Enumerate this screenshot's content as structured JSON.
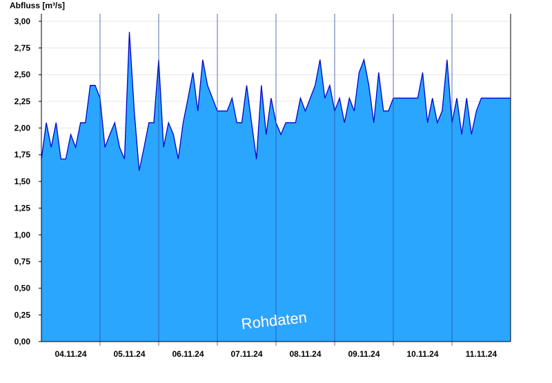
{
  "chart_data": {
    "type": "area",
    "y_label": "Abfluss [m³/s]",
    "annotation": "Rohdaten",
    "color": "#2aa6ff",
    "line_color": "#0000cc",
    "grid": true,
    "xlim": [
      0,
      192
    ],
    "ylim": [
      0,
      3.07
    ],
    "xticks": [
      {
        "value": 12,
        "label": "04.11.24"
      },
      {
        "value": 36,
        "label": "05.11.24"
      },
      {
        "value": 60,
        "label": "06.11.24"
      },
      {
        "value": 84,
        "label": "07.11.24"
      },
      {
        "value": 108,
        "label": "08.11.24"
      },
      {
        "value": 132,
        "label": "09.11.24"
      },
      {
        "value": 156,
        "label": "10.11.24"
      },
      {
        "value": 180,
        "label": "11.11.24"
      }
    ],
    "yticks": [
      {
        "value": 0,
        "label": "0,00"
      },
      {
        "value": 0.25,
        "label": "0,25"
      },
      {
        "value": 0.5,
        "label": "0,50"
      },
      {
        "value": 0.75,
        "label": "0,75"
      },
      {
        "value": 1,
        "label": "1,00"
      },
      {
        "value": 1.25,
        "label": "1,25"
      },
      {
        "value": 1.5,
        "label": "1,50"
      },
      {
        "value": 1.75,
        "label": "1,75"
      },
      {
        "value": 2,
        "label": "2,00"
      },
      {
        "value": 2.25,
        "label": "2,25"
      },
      {
        "value": 2.5,
        "label": "2,50"
      },
      {
        "value": 2.75,
        "label": "2,75"
      },
      {
        "value": 3,
        "label": "3,00"
      }
    ],
    "x": [
      0,
      2,
      4,
      6,
      8,
      10,
      12,
      14,
      16,
      18,
      20,
      22,
      24,
      26,
      28,
      30,
      32,
      34,
      36,
      38,
      40,
      42,
      44,
      46,
      48,
      50,
      52,
      54,
      56,
      58,
      60,
      62,
      64,
      66,
      68,
      70,
      72,
      74,
      76,
      78,
      80,
      82,
      84,
      86,
      88,
      90,
      92,
      94,
      96,
      98,
      100,
      102,
      104,
      106,
      108,
      110,
      112,
      114,
      116,
      118,
      120,
      122,
      124,
      126,
      128,
      130,
      132,
      134,
      136,
      138,
      140,
      142,
      144,
      146,
      148,
      150,
      152,
      154,
      156,
      158,
      160,
      162,
      164,
      166,
      168,
      170,
      172,
      174,
      176,
      178,
      180,
      182,
      184,
      186,
      188,
      190,
      192
    ],
    "values": [
      1.71,
      2.05,
      1.82,
      2.05,
      1.71,
      1.71,
      1.94,
      1.82,
      2.05,
      2.05,
      2.4,
      2.4,
      2.28,
      1.82,
      1.94,
      2.05,
      1.82,
      1.71,
      2.9,
      2.16,
      1.6,
      1.82,
      2.05,
      2.05,
      2.64,
      1.82,
      2.05,
      1.94,
      1.71,
      2.05,
      2.28,
      2.52,
      2.16,
      2.64,
      2.4,
      2.28,
      2.16,
      2.16,
      2.16,
      2.28,
      2.05,
      2.05,
      2.4,
      2.05,
      1.71,
      2.4,
      1.94,
      2.28,
      2.05,
      1.94,
      2.05,
      2.05,
      2.05,
      2.28,
      2.16,
      2.28,
      2.4,
      2.64,
      2.28,
      2.4,
      2.16,
      2.28,
      2.05,
      2.28,
      2.16,
      2.52,
      2.64,
      2.4,
      2.05,
      2.52,
      2.16,
      2.16,
      2.28,
      2.28,
      2.28,
      2.28,
      2.28,
      2.28,
      2.52,
      2.05,
      2.28,
      2.05,
      2.16,
      2.64,
      2.05,
      2.28,
      1.94,
      2.28,
      1.94,
      2.16,
      2.28,
      2.28,
      2.28,
      2.28,
      2.28,
      2.28,
      2.28
    ]
  }
}
